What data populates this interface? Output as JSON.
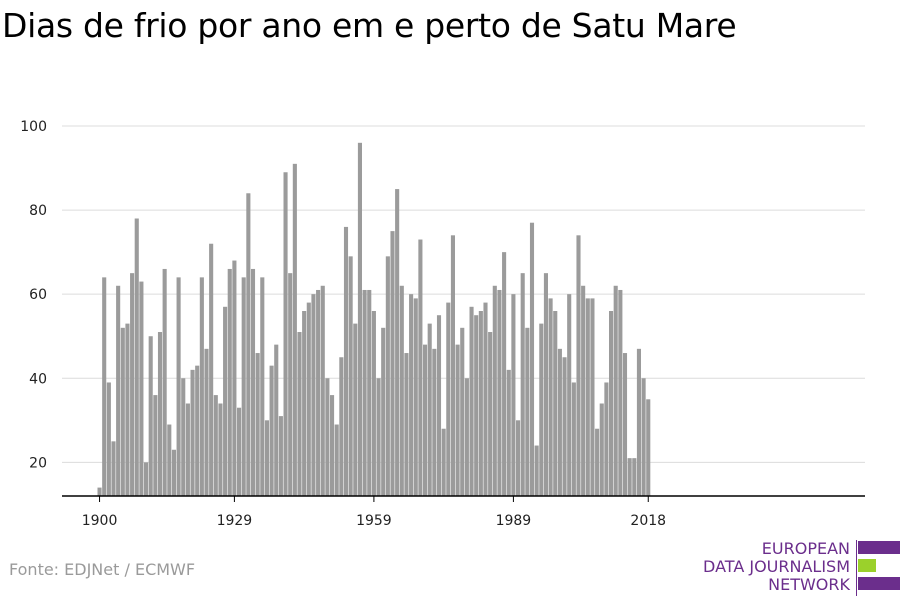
{
  "title": "Dias de frio por ano em e perto de Satu Mare",
  "source": "Fonte: EDJNet / ECMWF",
  "logo": {
    "lines": [
      "EUROPEAN",
      "DATA JOURNALISM",
      "NETWORK"
    ],
    "colors": {
      "text": "#6b2e8c",
      "purple": "#6b2e8c",
      "green": "#9bd12b"
    }
  },
  "chart_data": {
    "type": "bar",
    "x_start": 1900,
    "x_ticks": [
      1900,
      1929,
      1959,
      1989,
      2018
    ],
    "y_ticks": [
      20,
      40,
      60,
      80,
      100
    ],
    "ylim": [
      12,
      103
    ],
    "grid": true,
    "bar_color": "#9b9b9b",
    "values": [
      14,
      64,
      39,
      25,
      62,
      52,
      53,
      65,
      78,
      63,
      20,
      50,
      36,
      51,
      66,
      29,
      23,
      64,
      40,
      34,
      42,
      43,
      64,
      47,
      72,
      36,
      34,
      57,
      66,
      68,
      33,
      64,
      84,
      66,
      46,
      64,
      30,
      43,
      48,
      31,
      89,
      65,
      91,
      51,
      56,
      58,
      60,
      61,
      62,
      40,
      36,
      29,
      45,
      76,
      69,
      53,
      96,
      61,
      61,
      56,
      40,
      52,
      69,
      75,
      85,
      62,
      46,
      60,
      59,
      73,
      48,
      53,
      47,
      55,
      28,
      58,
      74,
      48,
      52,
      40,
      57,
      55,
      56,
      58,
      51,
      62,
      61,
      70,
      42,
      60,
      30,
      65,
      52,
      77,
      24,
      53,
      65,
      59,
      56,
      47,
      45,
      60,
      39,
      74,
      62,
      59,
      59,
      28,
      34,
      39,
      56,
      62,
      61,
      46,
      21,
      21,
      47,
      40,
      35
    ]
  }
}
